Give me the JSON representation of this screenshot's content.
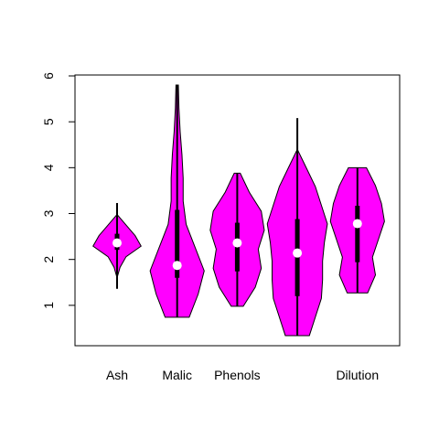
{
  "chart_data": {
    "type": "violin",
    "categories": [
      "Ash",
      "Malic",
      "Phenols",
      null,
      "Dilution"
    ],
    "color": "#ff00ff",
    "ylim": [
      0.12,
      6.02
    ],
    "yticks": [
      1,
      2,
      3,
      4,
      5,
      6
    ],
    "violins": [
      {
        "min": 1.36,
        "q1": 2.21,
        "median": 2.36,
        "q3": 2.56,
        "max": 3.23,
        "density_range": [
          1.6,
          2.98
        ],
        "widths": [
          0,
          0.05,
          0.15,
          0.4,
          0.3,
          0.15,
          0
        ]
      },
      {
        "min": 0.74,
        "q1": 1.6,
        "median": 1.87,
        "q3": 3.08,
        "max": 5.8,
        "density_range": [
          0.74,
          5.8
        ],
        "widths": [
          0.2,
          0.35,
          0.45,
          0.3,
          0.15,
          0.1,
          0.1,
          0.08,
          0.05,
          0.03,
          0.02
        ]
      },
      {
        "min": 0.98,
        "q1": 1.74,
        "median": 2.36,
        "q3": 2.8,
        "max": 3.88,
        "density_range": [
          0.98,
          3.88
        ],
        "widths": [
          0.1,
          0.3,
          0.4,
          0.35,
          0.45,
          0.4,
          0.2,
          0.05
        ]
      },
      {
        "min": 0.34,
        "q1": 1.2,
        "median": 2.14,
        "q3": 2.88,
        "max": 5.08,
        "density_range": [
          0.34,
          4.4
        ],
        "widths": [
          0.2,
          0.3,
          0.4,
          0.42,
          0.42,
          0.45,
          0.5,
          0.4,
          0.3,
          0.15,
          0
        ]
      },
      {
        "min": 1.27,
        "q1": 1.94,
        "median": 2.78,
        "q3": 3.17,
        "max": 4.0,
        "density_range": [
          1.27,
          4.0
        ],
        "widths": [
          0.17,
          0.3,
          0.25,
          0.35,
          0.45,
          0.4,
          0.3,
          0.15
        ]
      }
    ]
  }
}
